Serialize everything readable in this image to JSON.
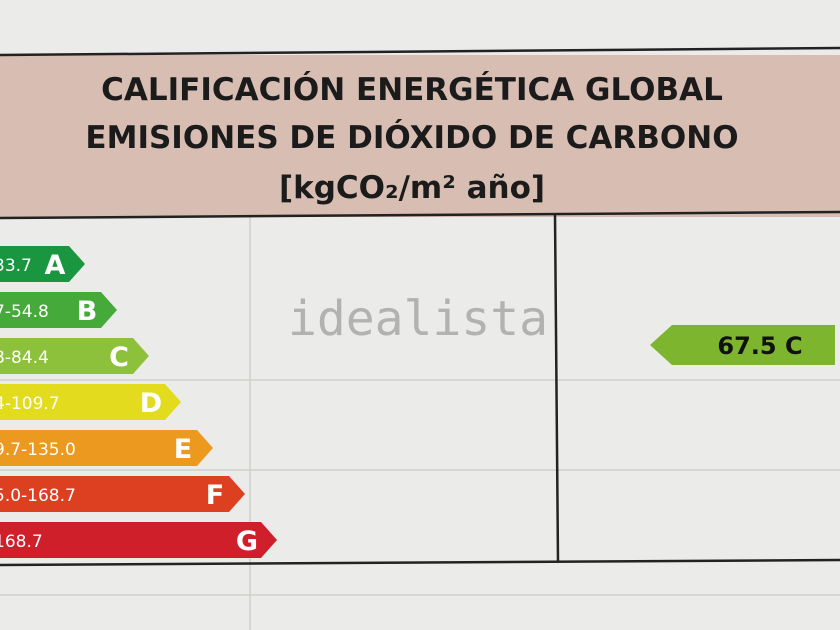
{
  "header": {
    "line1": "CALIFICACIÓN ENERGÉTICA GLOBAL",
    "line2": "EMISIONES DE DIÓXIDO DE CARBONO",
    "unit": "[kgCO₂/m² año]"
  },
  "watermark": "idealista",
  "scale": [
    {
      "range": "33.7",
      "letter": "A",
      "color": "#1a9640"
    },
    {
      "range": "7-54.8",
      "letter": "B",
      "color": "#45aa3a"
    },
    {
      "range": "8-84.4",
      "letter": "C",
      "color": "#8dc13b"
    },
    {
      "range": "4-109.7",
      "letter": "D",
      "color": "#e3dc1e"
    },
    {
      "range": "9.7-135.0",
      "letter": "E",
      "color": "#ec9a1f"
    },
    {
      "range": "5.0-168.7",
      "letter": "F",
      "color": "#dc4020"
    },
    {
      "range": "168.7",
      "letter": "G",
      "color": "#cf1f2b"
    }
  ],
  "result": {
    "label": "67.5 C"
  }
}
